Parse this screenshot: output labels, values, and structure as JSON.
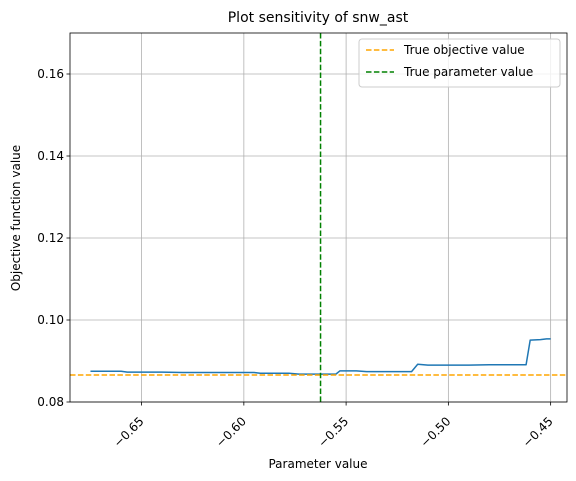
{
  "chart_data": {
    "type": "line",
    "title": "Plot sensitivity of snw_ast",
    "xlabel": "Parameter value",
    "ylabel": "Objective function value",
    "xlim": [
      -0.685,
      -0.442
    ],
    "ylim": [
      0.08,
      0.17
    ],
    "x_ticks": [
      -0.65,
      -0.6,
      -0.55,
      -0.5,
      -0.45
    ],
    "x_tick_labels": [
      "−0.65",
      "−0.60",
      "−0.55",
      "−0.50",
      "−0.45"
    ],
    "y_ticks": [
      0.08,
      0.1,
      0.12,
      0.14,
      0.16
    ],
    "y_tick_labels": [
      "0.08",
      "0.10",
      "0.12",
      "0.14",
      "0.16"
    ],
    "grid": true,
    "legend_position": "top-right",
    "series": [
      {
        "color": "#1f77b4",
        "style": "solid",
        "x": [
          -0.675,
          -0.67,
          -0.665,
          -0.66,
          -0.657,
          -0.65,
          -0.64,
          -0.63,
          -0.62,
          -0.61,
          -0.6,
          -0.595,
          -0.592,
          -0.585,
          -0.578,
          -0.573,
          -0.568,
          -0.563,
          -0.558,
          -0.555,
          -0.553,
          -0.548,
          -0.545,
          -0.54,
          -0.535,
          -0.53,
          -0.525,
          -0.52,
          -0.518,
          -0.515,
          -0.51,
          -0.5,
          -0.49,
          -0.48,
          -0.47,
          -0.465,
          -0.462,
          -0.46,
          -0.455,
          -0.452,
          -0.45
        ],
        "y": [
          0.0875,
          0.0875,
          0.0875,
          0.0875,
          0.0873,
          0.0873,
          0.0873,
          0.0872,
          0.0872,
          0.0872,
          0.0872,
          0.0872,
          0.087,
          0.087,
          0.087,
          0.0868,
          0.0868,
          0.0868,
          0.0868,
          0.0868,
          0.0876,
          0.0876,
          0.0876,
          0.0874,
          0.0874,
          0.0874,
          0.0874,
          0.0874,
          0.0874,
          0.0892,
          0.089,
          0.089,
          0.089,
          0.0891,
          0.0891,
          0.0891,
          0.0891,
          0.0951,
          0.0952,
          0.0954,
          0.0954
        ]
      },
      {
        "name": "True objective value",
        "color": "#ffa500",
        "style": "dashed",
        "orientation": "horizontal",
        "value": 0.0866
      },
      {
        "name": "True parameter value",
        "color": "#008000",
        "style": "dashed",
        "orientation": "vertical",
        "value": -0.5625
      }
    ]
  }
}
